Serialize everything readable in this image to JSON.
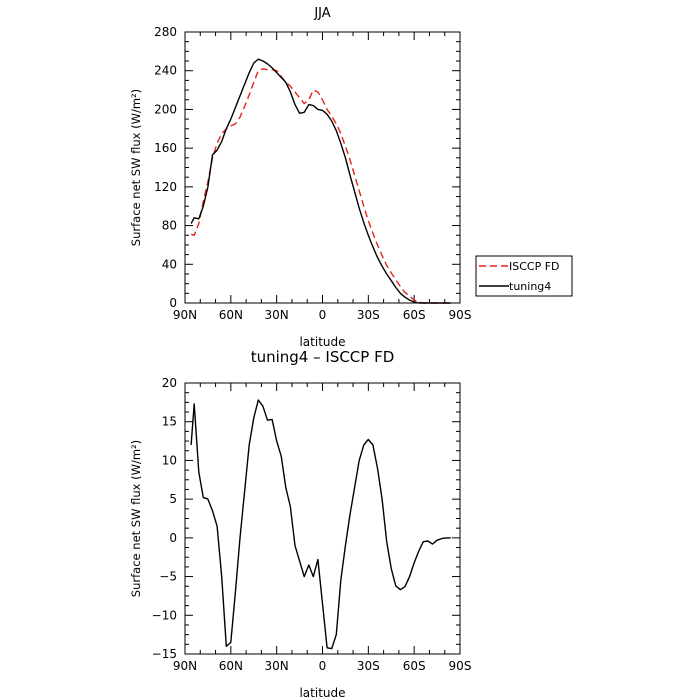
{
  "chart_data": [
    {
      "type": "line",
      "title": "JJA",
      "xlabel": "latitude",
      "ylabel": "Surface net SW flux (W/m²)",
      "xlim": [
        90,
        -90
      ],
      "ylim": [
        0,
        280
      ],
      "x_ticks": [
        90,
        60,
        30,
        0,
        -30,
        -60,
        -90
      ],
      "x_tick_labels": [
        "90N",
        "60N",
        "30N",
        "0",
        "30S",
        "60S",
        "90S"
      ],
      "y_ticks": [
        0,
        40,
        80,
        120,
        160,
        200,
        240,
        280
      ],
      "y_tick_labels": [
        "0",
        "40",
        "80",
        "120",
        "160",
        "200",
        "240",
        "280"
      ],
      "legend_placement": "right, outside plot",
      "series": [
        {
          "name": "ISCCP FD",
          "color": "#e8221a",
          "style": "dashed",
          "x": [
            86,
            84,
            81,
            78,
            75,
            72,
            69,
            66,
            63,
            60,
            57,
            54,
            51,
            48,
            45,
            42,
            39,
            36,
            33,
            30,
            27,
            24,
            21,
            18,
            15,
            12,
            9,
            6,
            3,
            0,
            -3,
            -6,
            -9,
            -12,
            -15,
            -18,
            -21,
            -24,
            -27,
            -30,
            -33,
            -36,
            -39,
            -42,
            -45,
            -48,
            -51,
            -54,
            -57,
            -60,
            -63,
            -66,
            -69,
            -72,
            -75,
            -78,
            -81,
            -84
          ],
          "y": [
            71,
            70,
            82,
            105,
            125,
            150,
            165,
            175,
            180,
            183,
            185,
            192,
            203,
            215,
            228,
            240,
            242,
            241,
            241,
            240,
            234,
            228,
            224,
            218,
            212,
            206,
            210,
            220,
            218,
            210,
            200,
            193,
            185,
            175,
            162,
            148,
            132,
            116,
            100,
            85,
            72,
            60,
            49,
            39,
            31,
            24,
            17,
            11,
            7,
            3,
            1,
            0,
            0,
            0,
            0,
            0,
            0,
            0
          ]
        },
        {
          "name": "tuning4",
          "color": "#000000",
          "style": "solid",
          "x": [
            86,
            84,
            81,
            78,
            75,
            72,
            69,
            66,
            63,
            60,
            57,
            54,
            51,
            48,
            45,
            42,
            39,
            36,
            33,
            30,
            27,
            24,
            21,
            18,
            15,
            12,
            9,
            6,
            3,
            0,
            -3,
            -6,
            -9,
            -12,
            -15,
            -18,
            -21,
            -24,
            -27,
            -30,
            -33,
            -36,
            -39,
            -42,
            -45,
            -48,
            -51,
            -54,
            -57,
            -60,
            -63,
            -66,
            -69,
            -72,
            -75,
            -78,
            -81,
            -84
          ],
          "y": [
            82,
            88,
            87,
            100,
            120,
            153,
            158,
            167,
            180,
            190,
            202,
            214,
            226,
            238,
            248,
            252,
            250,
            247,
            243,
            238,
            233,
            228,
            218,
            205,
            196,
            197,
            205,
            204,
            200,
            199,
            195,
            188,
            178,
            165,
            150,
            132,
            115,
            98,
            83,
            70,
            58,
            47,
            38,
            30,
            23,
            16,
            10,
            6,
            3,
            1,
            0,
            0,
            0,
            0,
            0,
            0,
            0,
            0
          ]
        }
      ]
    },
    {
      "type": "line",
      "title": "tuning4 – ISCCP FD",
      "xlabel": "latitude",
      "ylabel": "Surface net SW flux (W/m²)",
      "xlim": [
        90,
        -90
      ],
      "ylim": [
        -15,
        20
      ],
      "x_ticks": [
        90,
        60,
        30,
        0,
        -30,
        -60,
        -90
      ],
      "x_tick_labels": [
        "90N",
        "60N",
        "30N",
        "0",
        "30S",
        "60S",
        "90S"
      ],
      "y_ticks": [
        -15,
        -10,
        -5,
        0,
        5,
        10,
        15,
        20
      ],
      "y_tick_labels": [
        "−15",
        "−10",
        "−5",
        "0",
        "5",
        "10",
        "15",
        "20"
      ],
      "series": [
        {
          "color": "#000000",
          "style": "solid",
          "x": [
            86,
            84,
            81,
            78,
            75,
            72,
            69,
            66,
            63,
            60,
            57,
            54,
            51,
            48,
            45,
            42,
            39,
            36,
            33,
            30,
            27,
            24,
            21,
            18,
            15,
            12,
            9,
            6,
            3,
            0,
            -3,
            -6,
            -9,
            -12,
            -15,
            -18,
            -21,
            -24,
            -27,
            -30,
            -33,
            -36,
            -39,
            -42,
            -45,
            -48,
            -51,
            -54,
            -57,
            -60,
            -63,
            -66,
            -69,
            -72,
            -75,
            -78,
            -81,
            -84
          ],
          "y": [
            12,
            17.3,
            8.5,
            5.2,
            5,
            3.5,
            1.5,
            -5,
            -14,
            -13.5,
            -7,
            0,
            6,
            12,
            15.5,
            17.8,
            17,
            15.2,
            15.3,
            12.5,
            10.5,
            6.5,
            4,
            -1,
            -3,
            -5,
            -3.5,
            -5,
            -2.8,
            -8.5,
            -14.2,
            -14.3,
            -12.5,
            -5.5,
            -1,
            3,
            6.5,
            10,
            12,
            12.7,
            12,
            9,
            5,
            -0.5,
            -4,
            -6.2,
            -6.7,
            -6.3,
            -5,
            -3.2,
            -1.7,
            -0.5,
            -0.4,
            -0.8,
            -0.3,
            -0.1,
            0,
            0
          ]
        }
      ]
    }
  ]
}
